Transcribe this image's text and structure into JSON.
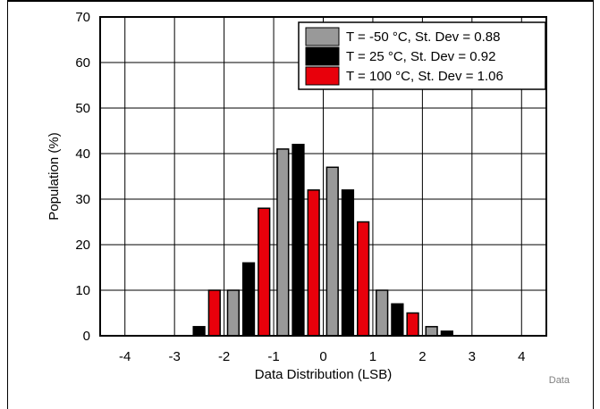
{
  "chart_data": {
    "type": "bar",
    "xlabel": "Data Distribution (LSB)",
    "ylabel": "Population (%)",
    "xlim": [
      -4.5,
      4.5
    ],
    "ylim": [
      0,
      70
    ],
    "x_ticks": [
      -4,
      -3,
      -2,
      -1,
      0,
      1,
      2,
      3,
      4
    ],
    "y_ticks": [
      0,
      10,
      20,
      30,
      40,
      50,
      60,
      70
    ],
    "grid": true,
    "legend_position": "top-right",
    "series": [
      {
        "name": "T = -50 °C, St. Dev = 0.88",
        "color": "#999999",
        "x": [
          -1.5,
          -0.5,
          0.5,
          1.5,
          2.5
        ],
        "values": [
          10,
          41,
          37,
          10,
          2
        ]
      },
      {
        "name": "T = 25 °C, St. Dev = 0.92",
        "color": "#000000",
        "x": [
          -2.5,
          -1.5,
          -0.5,
          0.5,
          1.5,
          2.5
        ],
        "values": [
          2,
          16,
          42,
          32,
          7,
          1
        ]
      },
      {
        "name": "T = 100 °C, St. Dev = 1.06",
        "color": "#e8000b",
        "x": [
          -2.5,
          -1.5,
          -0.5,
          0.5,
          1.5
        ],
        "values": [
          10,
          28,
          32,
          25,
          5
        ]
      }
    ]
  },
  "corner_label": "Data"
}
